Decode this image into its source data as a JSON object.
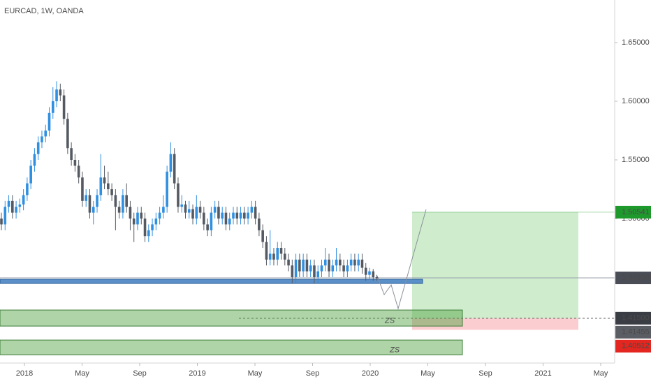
{
  "chart_data": {
    "type": "candlestick",
    "title": "EURCAD, 1W, OANDA",
    "ylim": [
      1.3768,
      1.6863
    ],
    "yticks": [
      {
        "value": 1.65,
        "label": "1.65000"
      },
      {
        "value": 1.6,
        "label": "1.60000"
      },
      {
        "value": 1.55,
        "label": "1.55000"
      },
      {
        "value": 1.5,
        "label": "1.50000"
      }
    ],
    "xticks": [
      "2018",
      "May",
      "Sep",
      "2019",
      "May",
      "Sep",
      "2020",
      "May",
      "Sep",
      "2021",
      "May"
    ],
    "up_color": "#2f8fe0",
    "down_color": "#555a62",
    "candles": [
      [
        1.5,
        1.505,
        1.49,
        1.495
      ],
      [
        1.495,
        1.515,
        1.49,
        1.51
      ],
      [
        1.51,
        1.52,
        1.505,
        1.515
      ],
      [
        1.515,
        1.52,
        1.5,
        1.505
      ],
      [
        1.505,
        1.515,
        1.5,
        1.51
      ],
      [
        1.51,
        1.517,
        1.505,
        1.512
      ],
      [
        1.512,
        1.525,
        1.507,
        1.52
      ],
      [
        1.52,
        1.535,
        1.515,
        1.53
      ],
      [
        1.53,
        1.55,
        1.525,
        1.545
      ],
      [
        1.545,
        1.56,
        1.54,
        1.555
      ],
      [
        1.555,
        1.57,
        1.55,
        1.565
      ],
      [
        1.565,
        1.575,
        1.56,
        1.57
      ],
      [
        1.57,
        1.58,
        1.565,
        1.575
      ],
      [
        1.575,
        1.595,
        1.57,
        1.59
      ],
      [
        1.59,
        1.612,
        1.585,
        1.6
      ],
      [
        1.6,
        1.617,
        1.595,
        1.61
      ],
      [
        1.61,
        1.615,
        1.6,
        1.605
      ],
      [
        1.605,
        1.61,
        1.58,
        1.585
      ],
      [
        1.585,
        1.59,
        1.555,
        1.56
      ],
      [
        1.56,
        1.565,
        1.545,
        1.55
      ],
      [
        1.55,
        1.555,
        1.54,
        1.545
      ],
      [
        1.545,
        1.55,
        1.53,
        1.535
      ],
      [
        1.535,
        1.54,
        1.51,
        1.515
      ],
      [
        1.515,
        1.525,
        1.51,
        1.52
      ],
      [
        1.52,
        1.525,
        1.5,
        1.505
      ],
      [
        1.505,
        1.515,
        1.495,
        1.51
      ],
      [
        1.51,
        1.525,
        1.505,
        1.52
      ],
      [
        1.52,
        1.555,
        1.515,
        1.535
      ],
      [
        1.535,
        1.545,
        1.525,
        1.53
      ],
      [
        1.53,
        1.54,
        1.52,
        1.525
      ],
      [
        1.525,
        1.53,
        1.515,
        1.52
      ],
      [
        1.52,
        1.525,
        1.49,
        1.51
      ],
      [
        1.51,
        1.515,
        1.5,
        1.505
      ],
      [
        1.505,
        1.525,
        1.5,
        1.52
      ],
      [
        1.52,
        1.53,
        1.505,
        1.51
      ],
      [
        1.51,
        1.515,
        1.49,
        1.5
      ],
      [
        1.5,
        1.505,
        1.48,
        1.495
      ],
      [
        1.495,
        1.51,
        1.49,
        1.505
      ],
      [
        1.505,
        1.51,
        1.495,
        1.5
      ],
      [
        1.5,
        1.505,
        1.48,
        1.485
      ],
      [
        1.485,
        1.495,
        1.48,
        1.49
      ],
      [
        1.49,
        1.5,
        1.485,
        1.495
      ],
      [
        1.495,
        1.505,
        1.49,
        1.5
      ],
      [
        1.5,
        1.51,
        1.495,
        1.505
      ],
      [
        1.505,
        1.52,
        1.5,
        1.51
      ],
      [
        1.51,
        1.545,
        1.505,
        1.54
      ],
      [
        1.54,
        1.565,
        1.535,
        1.555
      ],
      [
        1.555,
        1.56,
        1.525,
        1.53
      ],
      [
        1.53,
        1.535,
        1.505,
        1.51
      ],
      [
        1.51,
        1.52,
        1.505,
        1.512
      ],
      [
        1.512,
        1.515,
        1.5,
        1.505
      ],
      [
        1.505,
        1.515,
        1.5,
        1.508
      ],
      [
        1.508,
        1.512,
        1.495,
        1.5
      ],
      [
        1.5,
        1.52,
        1.495,
        1.51
      ],
      [
        1.51,
        1.515,
        1.5,
        1.505
      ],
      [
        1.505,
        1.51,
        1.49,
        1.495
      ],
      [
        1.495,
        1.5,
        1.485,
        1.49
      ],
      [
        1.49,
        1.51,
        1.485,
        1.505
      ],
      [
        1.505,
        1.515,
        1.5,
        1.51
      ],
      [
        1.51,
        1.515,
        1.495,
        1.5
      ],
      [
        1.5,
        1.51,
        1.495,
        1.505
      ],
      [
        1.505,
        1.51,
        1.49,
        1.495
      ],
      [
        1.495,
        1.505,
        1.49,
        1.5
      ],
      [
        1.5,
        1.51,
        1.495,
        1.505
      ],
      [
        1.505,
        1.51,
        1.495,
        1.5
      ],
      [
        1.5,
        1.51,
        1.495,
        1.505
      ],
      [
        1.505,
        1.51,
        1.495,
        1.5
      ],
      [
        1.5,
        1.51,
        1.495,
        1.505
      ],
      [
        1.505,
        1.515,
        1.5,
        1.51
      ],
      [
        1.51,
        1.515,
        1.495,
        1.5
      ],
      [
        1.5,
        1.505,
        1.485,
        1.49
      ],
      [
        1.49,
        1.495,
        1.475,
        1.48
      ],
      [
        1.48,
        1.485,
        1.46,
        1.465
      ],
      [
        1.465,
        1.49,
        1.46,
        1.47
      ],
      [
        1.47,
        1.475,
        1.46,
        1.465
      ],
      [
        1.465,
        1.48,
        1.46,
        1.475
      ],
      [
        1.475,
        1.48,
        1.465,
        1.47
      ],
      [
        1.47,
        1.475,
        1.46,
        1.465
      ],
      [
        1.465,
        1.47,
        1.455,
        1.46
      ],
      [
        1.46,
        1.465,
        1.445,
        1.45
      ],
      [
        1.45,
        1.47,
        1.445,
        1.465
      ],
      [
        1.465,
        1.47,
        1.45,
        1.455
      ],
      [
        1.455,
        1.47,
        1.45,
        1.465
      ],
      [
        1.465,
        1.47,
        1.45,
        1.455
      ],
      [
        1.455,
        1.465,
        1.45,
        1.46
      ],
      [
        1.46,
        1.465,
        1.445,
        1.45
      ],
      [
        1.45,
        1.46,
        1.445,
        1.455
      ],
      [
        1.455,
        1.465,
        1.45,
        1.46
      ],
      [
        1.46,
        1.475,
        1.455,
        1.465
      ],
      [
        1.465,
        1.47,
        1.45,
        1.455
      ],
      [
        1.455,
        1.465,
        1.45,
        1.46
      ],
      [
        1.46,
        1.475,
        1.455,
        1.465
      ],
      [
        1.465,
        1.47,
        1.455,
        1.46
      ],
      [
        1.46,
        1.465,
        1.45,
        1.455
      ],
      [
        1.455,
        1.465,
        1.45,
        1.46
      ],
      [
        1.46,
        1.47,
        1.455,
        1.465
      ],
      [
        1.465,
        1.47,
        1.455,
        1.46
      ],
      [
        1.46,
        1.47,
        1.455,
        1.465
      ],
      [
        1.465,
        1.47,
        1.453,
        1.458
      ],
      [
        1.458,
        1.462,
        1.447,
        1.452
      ],
      [
        1.452,
        1.458,
        1.448,
        1.455
      ],
      [
        1.455,
        1.457,
        1.447,
        1.45
      ],
      [
        1.45,
        1.452,
        1.447,
        1.449
      ]
    ],
    "price_labels": [
      {
        "value": 1.50541,
        "label": "1.50541",
        "color": "#1e9a2c"
      },
      {
        "value": 1.44939,
        "label": "1.44939",
        "color": "#4a4d55"
      },
      {
        "value": 1.415,
        "label": "1.41500",
        "color": "#3a3d44"
      },
      {
        "value": 1.41455,
        "label": "1.41455",
        "color": "#5a5d64"
      },
      {
        "value": 1.40512,
        "label": "1.40512",
        "color": "#e3261f"
      }
    ],
    "zones": [
      {
        "label": "ZS",
        "top": 1.422,
        "bottom": 1.4083
      },
      {
        "label": "ZS",
        "top": 1.3964,
        "bottom": 1.3839
      }
    ]
  }
}
